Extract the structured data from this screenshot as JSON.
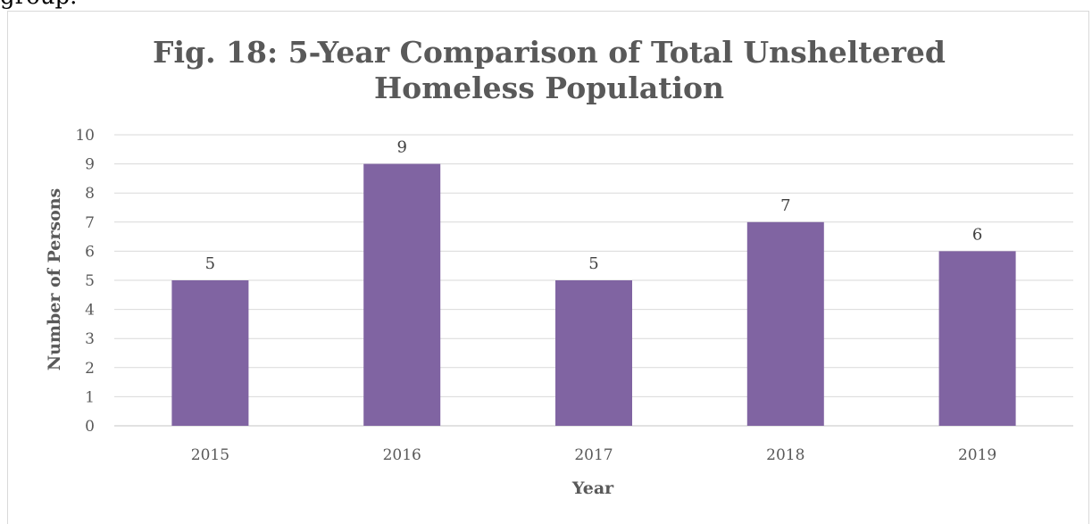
{
  "page": {
    "top_text": "group."
  },
  "chart_data": {
    "type": "bar",
    "title": "Fig. 18: 5-Year Comparison of Total Unsheltered Homeless Population",
    "title_lines": [
      "Fig. 18: 5-Year Comparison of Total Unsheltered",
      "Homeless Population"
    ],
    "categories": [
      "2015",
      "2016",
      "2017",
      "2018",
      "2019"
    ],
    "values": [
      5,
      9,
      5,
      7,
      6
    ],
    "xlabel": "Year",
    "ylabel": "Number of Persons",
    "ylim": [
      0,
      10
    ],
    "yticks": [
      0,
      1,
      2,
      3,
      4,
      5,
      6,
      7,
      8,
      9,
      10
    ],
    "grid": true,
    "data_labels": true,
    "legend": "none",
    "colors": {
      "bar": "#8064a2",
      "grid": "#d9d9d9",
      "text": "#595959"
    }
  }
}
